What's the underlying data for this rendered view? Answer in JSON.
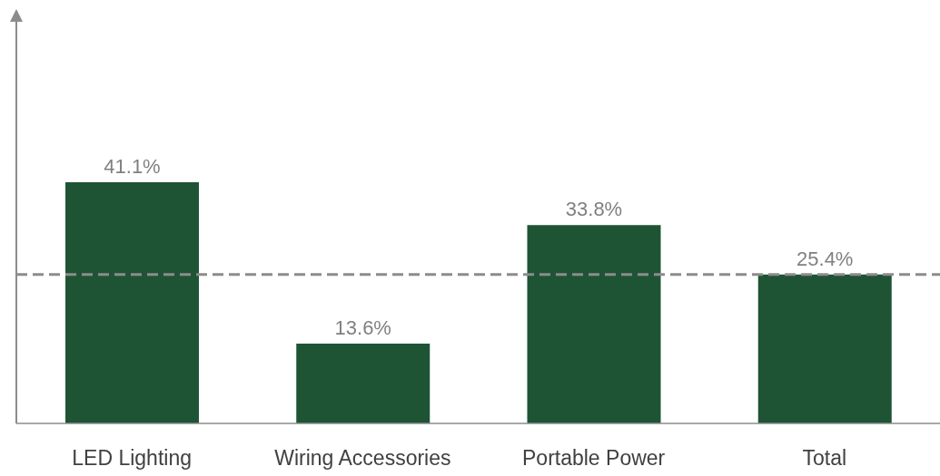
{
  "chart_data": {
    "type": "bar",
    "categories": [
      "LED Lighting",
      "Wiring Accessories",
      "Portable Power",
      "Total"
    ],
    "values": [
      41.1,
      13.6,
      33.8,
      25.4
    ],
    "color": "#1e5434",
    "value_labels": [
      "41.1%",
      "13.6%",
      "33.8%",
      "25.4%"
    ],
    "ref_lines": [
      {
        "axis": "y",
        "value": 25.4,
        "color": "#8c8c8c",
        "line_style": "dashed"
      }
    ],
    "grid": false,
    "legend": false
  }
}
